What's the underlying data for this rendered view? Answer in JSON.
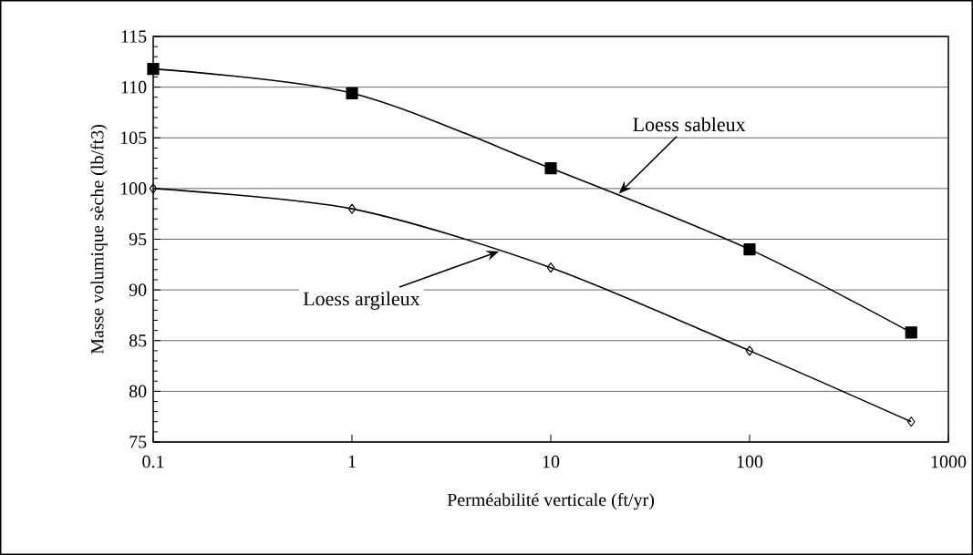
{
  "chart_data": {
    "type": "line",
    "xlabel": "Perméabilité verticale (ft/yr)",
    "ylabel": "Masse volumique sèche (lb/ft3)",
    "series": [
      {
        "x": [
          0.1,
          1,
          10,
          100,
          650
        ],
        "values": [
          111.8,
          109.4,
          102,
          94,
          85.8
        ],
        "color": "#000000",
        "marker": "square"
      },
      {
        "x": [
          0.1,
          1,
          10,
          100,
          650
        ],
        "values": [
          100,
          98,
          92.2,
          84,
          77
        ],
        "color": "#000000",
        "marker": "diamond"
      }
    ],
    "annotations": [
      {
        "text": "Loess sableux",
        "x": 22,
        "y": 99.5
      },
      {
        "text": "Loess argileux",
        "x": 5.5,
        "y": 93.8
      }
    ],
    "log": "x",
    "xlim": [
      0.1,
      1000
    ],
    "ylim": [
      75,
      115
    ],
    "xticks": [
      0.1,
      1,
      10,
      100,
      1000
    ],
    "yticks": [
      75,
      80,
      85,
      90,
      95,
      100,
      105,
      110,
      115
    ],
    "grid": "y",
    "line_style": "solid"
  }
}
